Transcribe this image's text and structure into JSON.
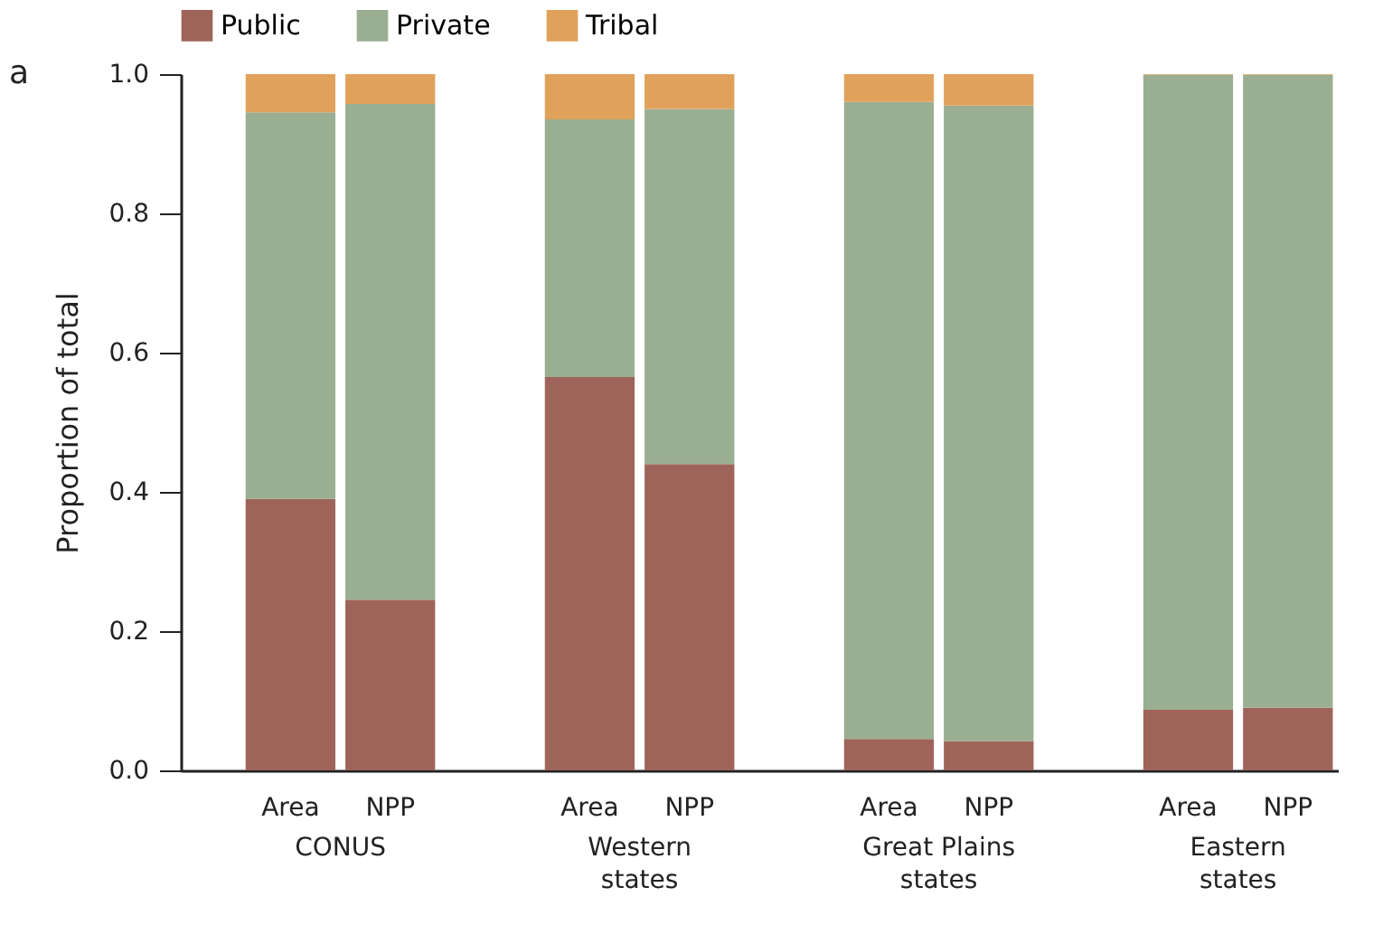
{
  "chart_data": {
    "type": "bar",
    "stacked": true,
    "ylabel": "Proportion of total",
    "categories": [
      "Area",
      "NPP",
      "Area",
      "NPP",
      "Area",
      "NPP",
      "Area",
      "NPP"
    ],
    "series": [
      {
        "name": "Public",
        "color": "#9e645a",
        "values": [
          0.39,
          0.245,
          0.565,
          0.44,
          0.045,
          0.042,
          0.087,
          0.09
        ]
      },
      {
        "name": "Private",
        "color": "#9aae92",
        "values": [
          0.555,
          0.712,
          0.37,
          0.51,
          0.915,
          0.913,
          0.912,
          0.909
        ]
      },
      {
        "name": "Tribal",
        "color": "#e0a15a",
        "values": [
          0.055,
          0.043,
          0.065,
          0.05,
          0.04,
          0.045,
          0.001,
          0.001
        ]
      }
    ],
    "annotations": [
      "a",
      "CONUS",
      "Western\nstates",
      "Great Plains\nstates",
      "Eastern\nstates"
    ],
    "ylim": [
      0,
      1
    ],
    "yticks": [
      {
        "value": 0,
        "label": "0.0"
      },
      {
        "value": 0.2,
        "label": "0.2"
      },
      {
        "value": 0.4,
        "label": "0.4"
      },
      {
        "value": 0.6,
        "label": "0.6"
      },
      {
        "value": 0.8,
        "label": "0.8"
      },
      {
        "value": 1,
        "label": "1.0"
      }
    ],
    "grid": false,
    "legend": "top"
  }
}
